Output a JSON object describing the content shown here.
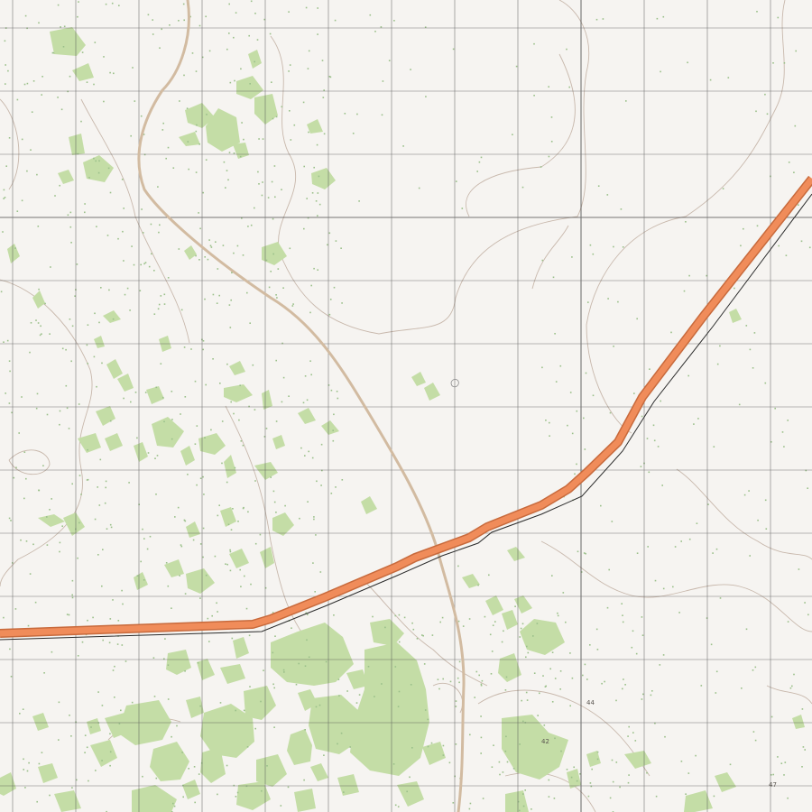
{
  "colors": {
    "background": "#f6f4f1",
    "grid_minor": "#4a4a4a",
    "grid_major": "#555555",
    "contour": "#c8b8ac",
    "vegetation": "#c4dda6",
    "vegetation_dot": "#9bc08a",
    "road_main": "#f08c5a",
    "road_main_edge": "#c86a3c",
    "track": "#d2bba1",
    "road_side_line": "#2b2b2b"
  },
  "labels": {
    "elevation_44": "44",
    "elevation_42": "42",
    "elevation_47": "47"
  },
  "icons": {
    "grid": "grid-lines",
    "forest": "vegetation-patch",
    "road": "highway",
    "track": "dirt-track"
  }
}
